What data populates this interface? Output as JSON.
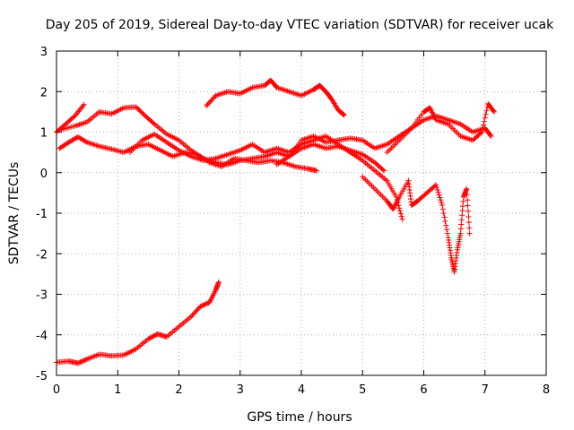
{
  "chart_data": {
    "type": "scatter",
    "title": "Day 205 of 2019, Sidereal Day-to-day VTEC variation (SDTVAR) for receiver ucak",
    "xlabel": "GPS time / hours",
    "ylabel": "SDTVAR / TECUs",
    "xlim": [
      0,
      8
    ],
    "ylim": [
      -5,
      3
    ],
    "xticks": [
      "0",
      "1",
      "2",
      "3",
      "4",
      "5",
      "6",
      "7",
      "8"
    ],
    "yticks": [
      "-5",
      "-4",
      "-3",
      "-2",
      "-1",
      "0",
      "1",
      "2",
      "3"
    ],
    "grid": true,
    "marker": "+",
    "color": "#ff0000",
    "series": [
      {
        "values": [
          [
            0.0,
            -4.68
          ],
          [
            0.2,
            -4.65
          ],
          [
            0.35,
            -4.7
          ],
          [
            0.5,
            -4.6
          ],
          [
            0.7,
            -4.48
          ],
          [
            0.9,
            -4.52
          ],
          [
            1.1,
            -4.5
          ],
          [
            1.3,
            -4.35
          ],
          [
            1.5,
            -4.1
          ],
          [
            1.65,
            -3.98
          ],
          [
            1.8,
            -4.05
          ],
          [
            2.0,
            -3.8
          ],
          [
            2.2,
            -3.55
          ],
          [
            2.35,
            -3.3
          ],
          [
            2.5,
            -3.2
          ],
          [
            2.6,
            -2.9
          ],
          [
            2.65,
            -2.7
          ]
        ]
      },
      {
        "values": [
          [
            0.0,
            1.0
          ],
          [
            0.15,
            1.2
          ],
          [
            0.3,
            1.4
          ],
          [
            0.45,
            1.68
          ]
        ]
      },
      {
        "values": [
          [
            0.05,
            1.05
          ],
          [
            0.3,
            1.15
          ],
          [
            0.5,
            1.25
          ],
          [
            0.7,
            1.5
          ],
          [
            0.9,
            1.45
          ],
          [
            1.1,
            1.6
          ],
          [
            1.3,
            1.62
          ],
          [
            1.45,
            1.4
          ],
          [
            1.6,
            1.2
          ],
          [
            1.8,
            0.95
          ],
          [
            2.0,
            0.8
          ],
          [
            2.2,
            0.55
          ],
          [
            2.4,
            0.35
          ],
          [
            2.6,
            0.25
          ],
          [
            2.8,
            0.2
          ],
          [
            3.0,
            0.3
          ],
          [
            3.2,
            0.35
          ],
          [
            3.4,
            0.4
          ],
          [
            3.6,
            0.5
          ],
          [
            3.8,
            0.4
          ],
          [
            4.0,
            0.6
          ],
          [
            4.2,
            0.7
          ],
          [
            4.4,
            0.6
          ],
          [
            4.6,
            0.65
          ],
          [
            4.8,
            0.55
          ],
          [
            5.0,
            0.45
          ],
          [
            5.2,
            0.25
          ],
          [
            5.35,
            0.05
          ]
        ]
      },
      {
        "values": [
          [
            0.05,
            0.6
          ],
          [
            0.2,
            0.75
          ],
          [
            0.35,
            0.88
          ],
          [
            0.5,
            0.75
          ],
          [
            0.7,
            0.65
          ],
          [
            0.9,
            0.58
          ],
          [
            1.1,
            0.5
          ],
          [
            1.3,
            0.65
          ],
          [
            1.5,
            0.7
          ],
          [
            1.7,
            0.55
          ],
          [
            1.9,
            0.4
          ],
          [
            2.1,
            0.5
          ],
          [
            2.3,
            0.45
          ],
          [
            2.5,
            0.25
          ],
          [
            2.7,
            0.15
          ],
          [
            2.9,
            0.35
          ],
          [
            3.1,
            0.3
          ],
          [
            3.3,
            0.25
          ],
          [
            3.5,
            0.3
          ],
          [
            3.7,
            0.25
          ],
          [
            3.9,
            0.15
          ],
          [
            4.1,
            0.1
          ],
          [
            4.25,
            0.05
          ]
        ]
      },
      {
        "values": [
          [
            1.2,
            0.5
          ],
          [
            1.4,
            0.8
          ],
          [
            1.6,
            0.95
          ],
          [
            1.8,
            0.75
          ],
          [
            2.0,
            0.55
          ],
          [
            2.2,
            0.4
          ],
          [
            2.4,
            0.3
          ],
          [
            2.6,
            0.35
          ],
          [
            2.8,
            0.45
          ],
          [
            3.0,
            0.55
          ],
          [
            3.2,
            0.7
          ],
          [
            3.4,
            0.5
          ],
          [
            3.6,
            0.6
          ],
          [
            3.8,
            0.5
          ],
          [
            4.0,
            0.7
          ],
          [
            4.2,
            0.8
          ],
          [
            4.4,
            0.9
          ],
          [
            4.6,
            0.7
          ],
          [
            4.8,
            0.5
          ],
          [
            5.0,
            0.3
          ],
          [
            5.2,
            0.05
          ],
          [
            5.4,
            -0.2
          ],
          [
            5.55,
            -0.6
          ],
          [
            5.65,
            -1.15
          ]
        ]
      },
      {
        "values": [
          [
            2.45,
            1.65
          ],
          [
            2.6,
            1.9
          ],
          [
            2.8,
            2.0
          ],
          [
            3.0,
            1.95
          ],
          [
            3.2,
            2.1
          ],
          [
            3.4,
            2.15
          ],
          [
            3.5,
            2.28
          ],
          [
            3.6,
            2.1
          ],
          [
            3.8,
            2.0
          ],
          [
            4.0,
            1.9
          ],
          [
            4.2,
            2.05
          ],
          [
            4.3,
            2.15
          ],
          [
            4.4,
            2.0
          ],
          [
            4.5,
            1.8
          ],
          [
            4.6,
            1.55
          ],
          [
            4.7,
            1.42
          ]
        ]
      },
      {
        "values": [
          [
            3.6,
            0.2
          ],
          [
            3.8,
            0.4
          ],
          [
            4.0,
            0.8
          ],
          [
            4.2,
            0.9
          ],
          [
            4.4,
            0.75
          ],
          [
            4.6,
            0.8
          ],
          [
            4.8,
            0.85
          ],
          [
            5.0,
            0.8
          ],
          [
            5.2,
            0.6
          ],
          [
            5.4,
            0.7
          ],
          [
            5.6,
            0.9
          ],
          [
            5.8,
            1.1
          ],
          [
            6.0,
            1.3
          ],
          [
            6.2,
            1.4
          ],
          [
            6.4,
            1.3
          ],
          [
            6.6,
            1.2
          ],
          [
            6.8,
            1.0
          ],
          [
            7.0,
            1.1
          ],
          [
            7.1,
            0.9
          ]
        ]
      },
      {
        "values": [
          [
            5.0,
            -0.1
          ],
          [
            5.2,
            -0.4
          ],
          [
            5.4,
            -0.7
          ],
          [
            5.5,
            -0.9
          ],
          [
            5.6,
            -0.6
          ],
          [
            5.75,
            -0.2
          ],
          [
            5.8,
            -0.8
          ],
          [
            5.9,
            -0.7
          ],
          [
            6.05,
            -0.5
          ],
          [
            6.2,
            -0.3
          ],
          [
            6.3,
            -0.8
          ],
          [
            6.4,
            -1.6
          ],
          [
            6.45,
            -2.1
          ],
          [
            6.5,
            -2.45
          ],
          [
            6.55,
            -1.9
          ],
          [
            6.6,
            -1.5
          ],
          [
            6.65,
            -0.6
          ],
          [
            6.7,
            -0.4
          ],
          [
            6.75,
            -1.5
          ]
        ]
      },
      {
        "values": [
          [
            5.4,
            0.5
          ],
          [
            5.6,
            0.8
          ],
          [
            5.8,
            1.1
          ],
          [
            6.0,
            1.5
          ],
          [
            6.1,
            1.6
          ],
          [
            6.2,
            1.3
          ],
          [
            6.4,
            1.2
          ],
          [
            6.6,
            0.9
          ],
          [
            6.8,
            0.8
          ],
          [
            6.95,
            1.0
          ],
          [
            7.05,
            1.7
          ],
          [
            7.15,
            1.5
          ]
        ]
      }
    ]
  }
}
